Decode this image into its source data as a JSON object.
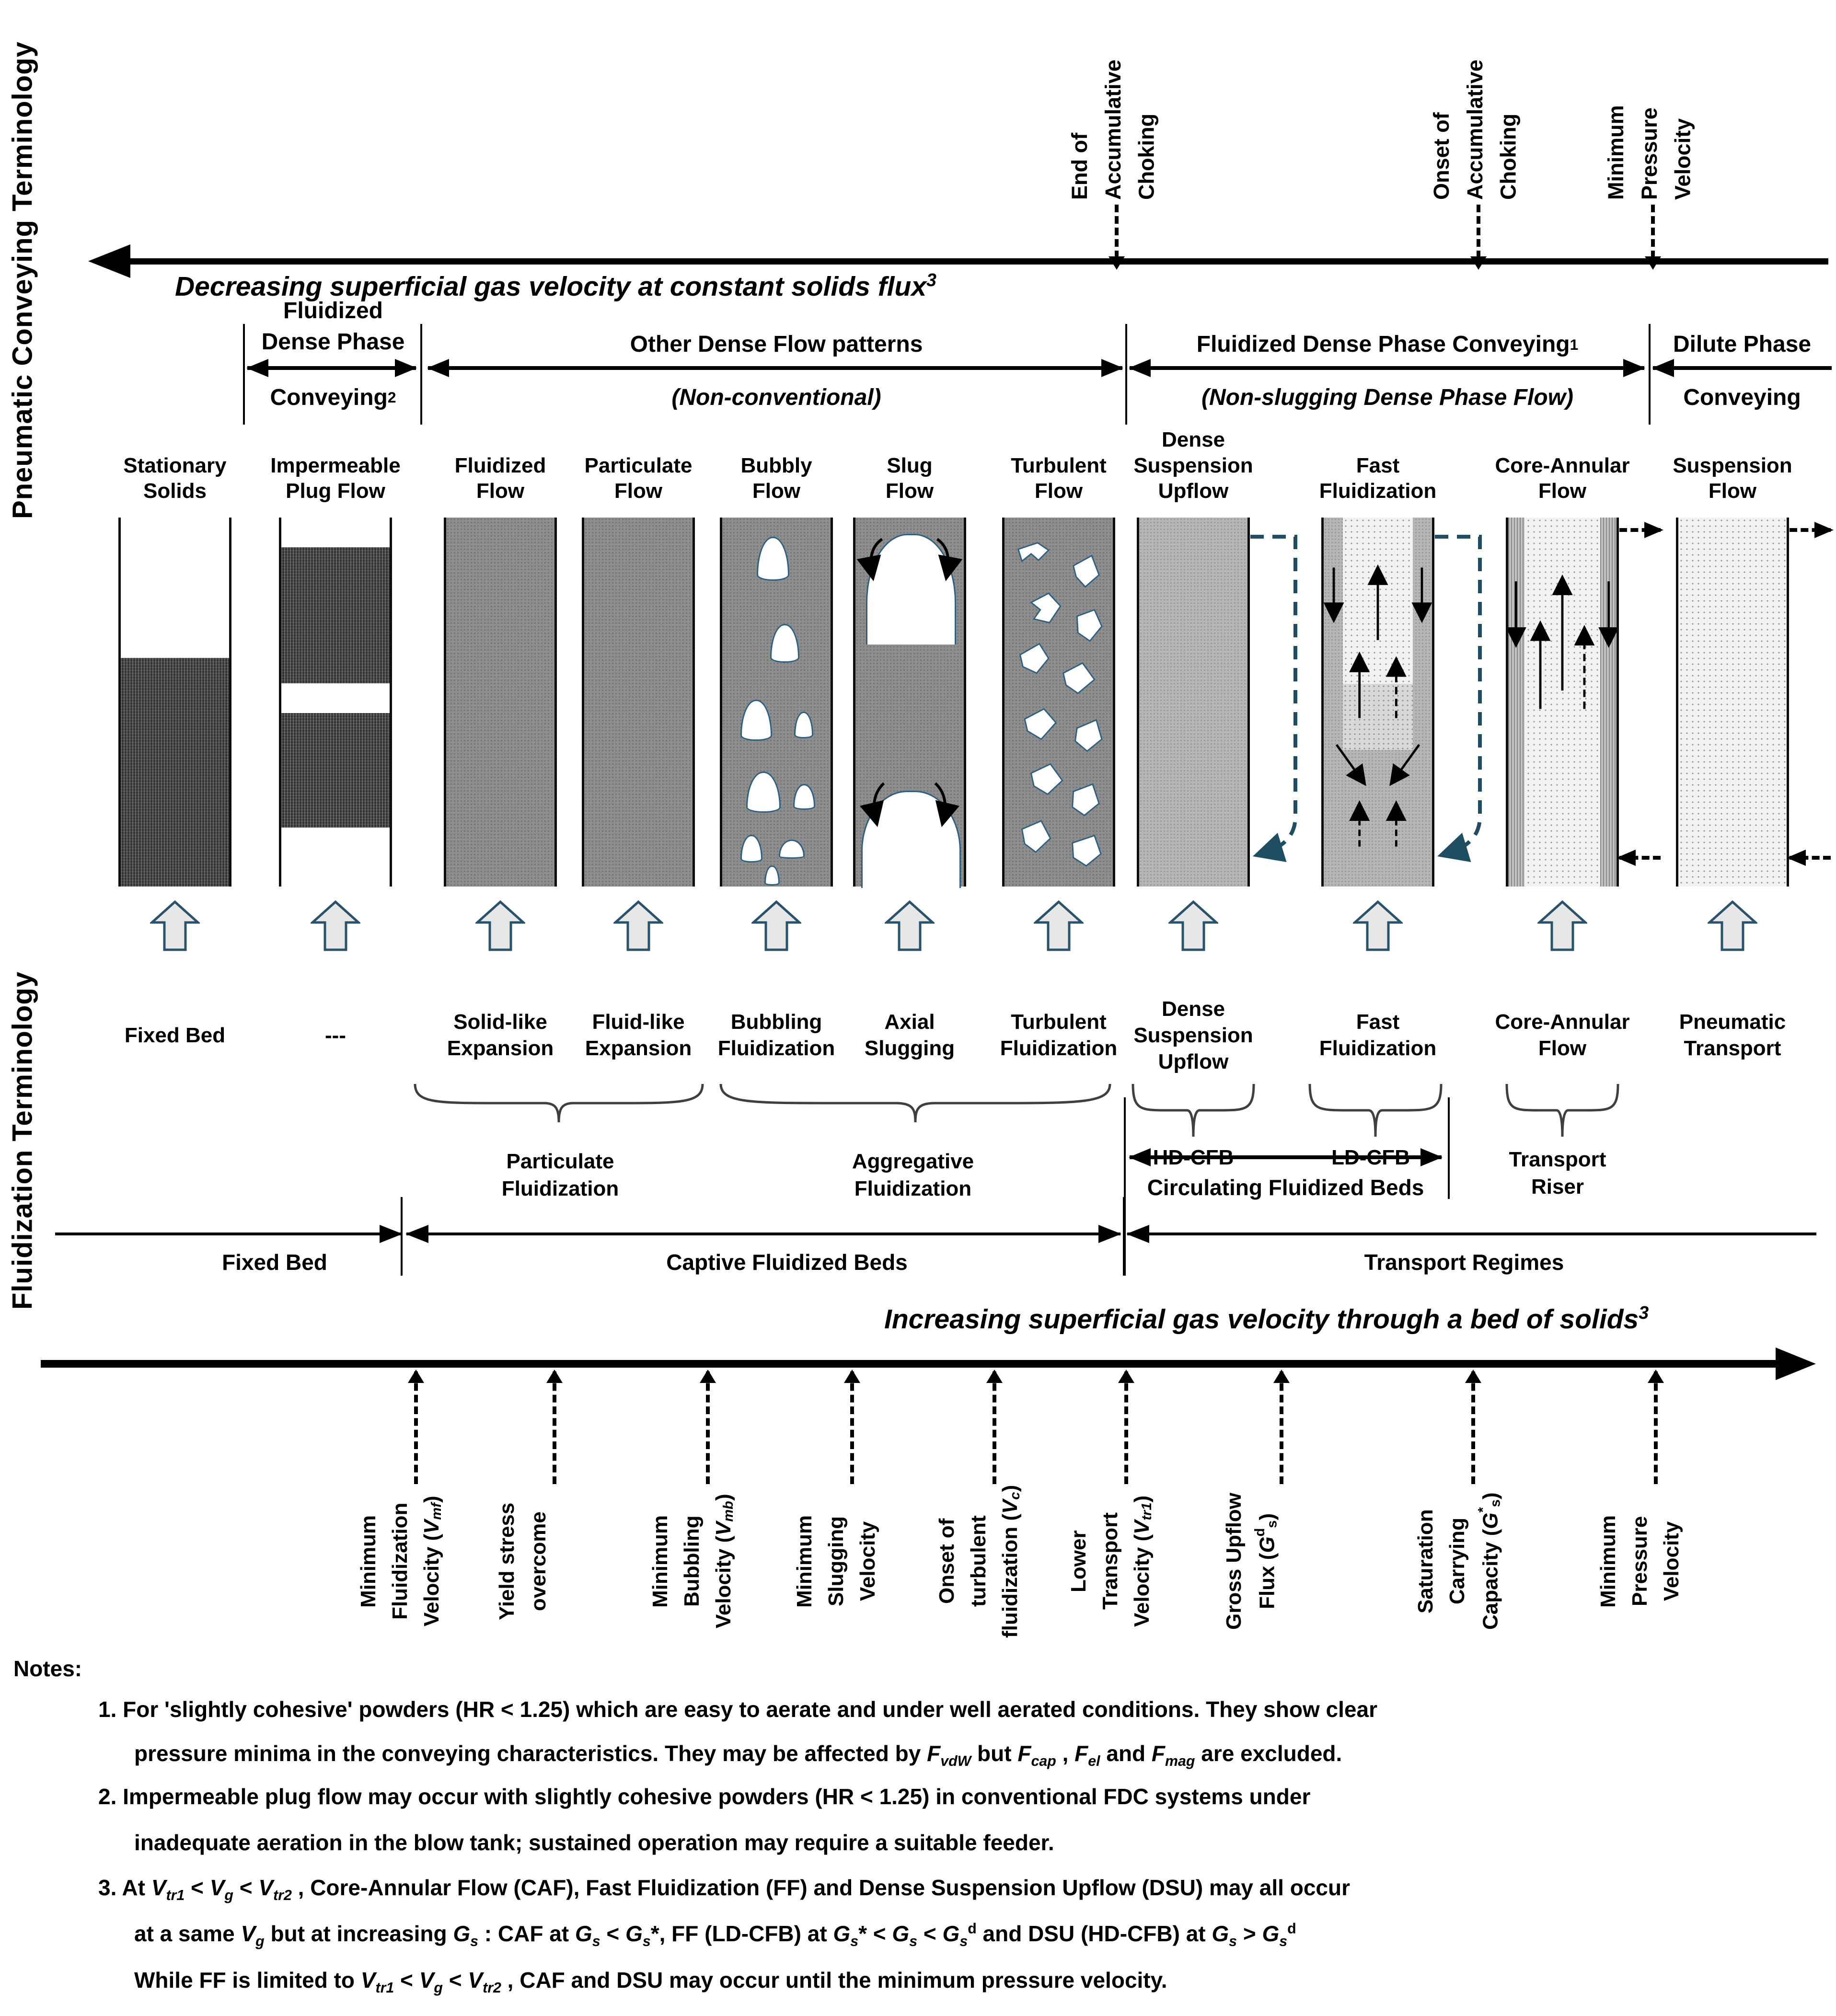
{
  "axes": {
    "pneumatic": "Pneumatic Conveying Terminology",
    "fluidization": "Fluidization Terminology"
  },
  "top_band": {
    "caption_html": "Decreasing superficial gas velocity at constant solids flux<sup>3</sup>",
    "markers": [
      {
        "label_html": "End of<br>Accumulative<br>Choking"
      },
      {
        "label_html": "Onset of<br>Accumulative<br>Choking"
      },
      {
        "label_html": "Minimum<br>Pressure<br>Velocity"
      }
    ]
  },
  "conveying_groups": [
    {
      "title_html": "Fluidized<br>Dense Phase",
      "subtitle_html": "Conveying<sup>2</sup>"
    },
    {
      "title_html": "Other Dense Flow patterns",
      "subtitle_html": "(Non-conventional)"
    },
    {
      "title_html": "Fluidized Dense Phase Conveying<sup>1</sup>",
      "subtitle_html": "(Non-slugging Dense Phase Flow)"
    },
    {
      "title_html": "Dilute Phase",
      "subtitle_html": "Conveying"
    }
  ],
  "columns": [
    {
      "label_html": "Stationary<br>Solids",
      "fluidization_html": "Fixed Bed"
    },
    {
      "label_html": "Impermeable<br>Plug Flow",
      "fluidization_html": "---"
    },
    {
      "label_html": "Fluidized<br>Flow",
      "fluidization_html": "Solid-like<br>Expansion"
    },
    {
      "label_html": "Particulate<br>Flow",
      "fluidization_html": "Fluid-like<br>Expansion"
    },
    {
      "label_html": "Bubbly<br>Flow",
      "fluidization_html": "Bubbling<br>Fluidization"
    },
    {
      "label_html": "Slug<br>Flow",
      "fluidization_html": "Axial<br>Slugging"
    },
    {
      "label_html": "Turbulent<br>Flow",
      "fluidization_html": "Turbulent<br>Fluidization"
    },
    {
      "label_html": "Dense<br>Suspension<br>Upflow",
      "fluidization_html": "Dense<br>Suspension<br>Upflow"
    },
    {
      "label_html": "Fast<br>Fluidization",
      "fluidization_html": "Fast<br>Fluidization"
    },
    {
      "label_html": "Core-Annular<br>Flow",
      "fluidization_html": "Core-Annular<br>Flow"
    },
    {
      "label_html": "Suspension<br>Flow",
      "fluidization_html": "Pneumatic<br>Transport"
    }
  ],
  "groupings": {
    "particulate": "Particulate<br>Fluidization",
    "aggregative": "Aggregative<br>Fluidization",
    "hd_cfb": "HD-CFB",
    "ld_cfb": "LD-CFB",
    "transport_riser": "Transport<br>Riser",
    "cfb": "Circulating Fluidized Beds"
  },
  "regimes": {
    "fixed_bed": "Fixed Bed",
    "captive": "Captive Fluidized Beds",
    "transport": "Transport Regimes"
  },
  "bottom_band": {
    "caption_html": "Increasing superficial gas velocity through a bed of solids<sup>3</sup>",
    "markers": [
      {
        "label_html": "Minimum<br>Fluidization<br>Velocity (<i>V<sub>mf</sub></i>)"
      },
      {
        "label_html": "Yield stress<br>overcome"
      },
      {
        "label_html": "Minimum<br>Bubbling<br>Velocity (<i>V<sub>mb</sub></i>)"
      },
      {
        "label_html": "Minimum<br>Slugging<br>Velocity"
      },
      {
        "label_html": "Onset of<br>turbulent<br>fluidization (<i>V<sub>c</sub></i>)"
      },
      {
        "label_html": "Lower<br>Transport<br>Velocity (<i>V<sub>tr1</sub></i>)"
      },
      {
        "label_html": "Gross Upflow<br>Flux (<i>G</i><sup>d</sup><sub>s</sub>)"
      },
      {
        "label_html": "Saturation<br>Carrying<br>Capacity (<i>G</i><sup>*</sup><sub>s</sub>)"
      },
      {
        "label_html": "Minimum<br>Pressure<br>Velocity"
      }
    ]
  },
  "notes": {
    "heading": "Notes:",
    "item1_line1": "1. For 'slightly cohesive' powders (HR &lt; 1.25) which are easy to aerate and under well aerated conditions. They show clear",
    "item1_line2": "pressure minima in the conveying characteristics. They may be affected by <i>F<sub>vdW</sub></i> but <i>F<sub>cap</sub></i> , <i>F<sub>el</sub></i> and <i>F<sub>mag</sub></i> are excluded.",
    "item2_line1": "2. Impermeable plug flow may occur with slightly cohesive powders (HR &lt; 1.25) in conventional FDC systems under",
    "item2_line2": "inadequate aeration in the blow tank; sustained operation may require a suitable feeder.",
    "item3_line1": "3. At  <i>V<sub>tr1</sub></i> &lt; <i>V<sub>g</sub></i> &lt; <i>V<sub>tr2</sub></i> , Core-Annular Flow (CAF), Fast Fluidization (FF) and Dense Suspension Upflow (DSU) may all occur",
    "item3_line2": "at a same <i>V<sub>g</sub></i>  but at increasing <i>G<sub>s</sub></i>  : CAF at <i>G<sub>s</sub></i> &lt; <i>G<sub>s</sub></i>*, FF (LD-CFB) at <i>G<sub>s</sub></i>* &lt; <i>G<sub>s</sub></i> &lt; <i>G<sub>s</sub></i><sup>d</sup> and DSU (HD-CFB) at <i>G<sub>s</sub></i> &gt; <i>G<sub>s</sub></i><sup>d</sup>",
    "item3_line3": "While FF is limited to <i>V<sub>tr1</sub></i> &lt; <i>V<sub>g</sub></i> &lt; <i>V<sub>tr2</sub></i> , CAF and DSU may occur until the minimum pressure velocity."
  },
  "colors": {
    "accent_blue": "#1f4e63",
    "outline_blue": "#2e6080",
    "vessel_gray": "#8d8d8d",
    "dark_fill": "#333333",
    "light_fill": "#f2f2f2"
  }
}
